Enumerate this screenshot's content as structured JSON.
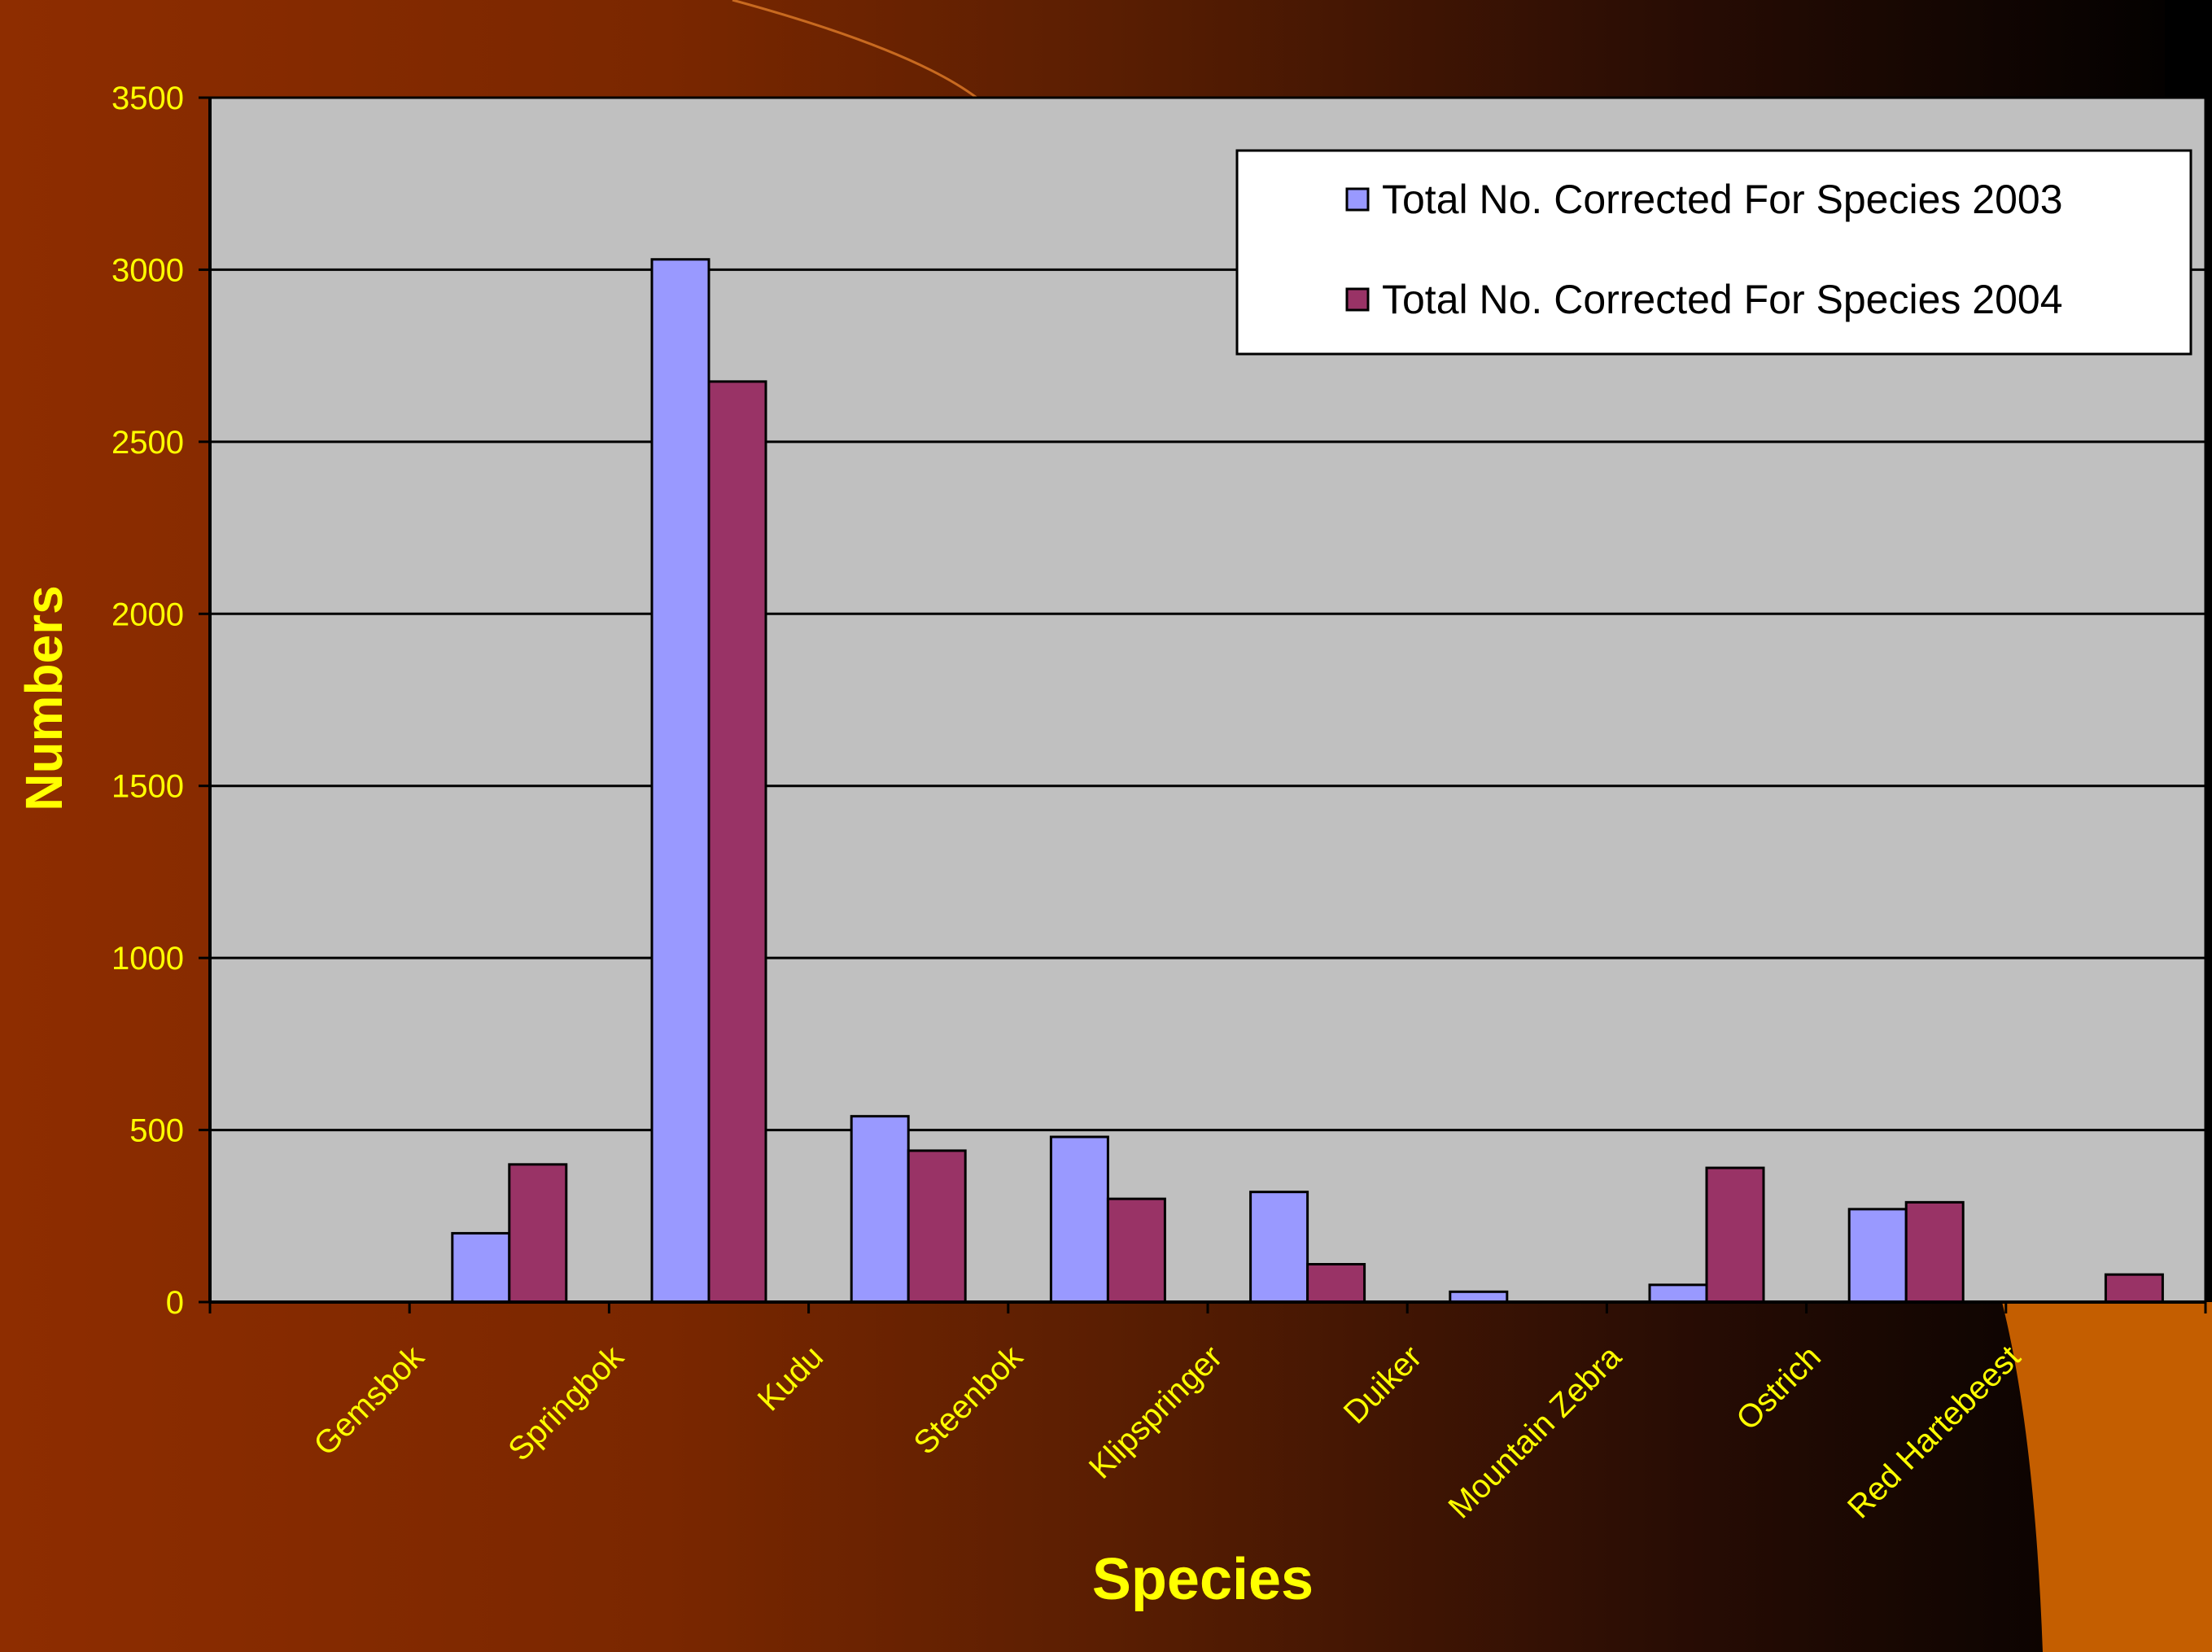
{
  "chart_data": {
    "type": "bar",
    "categories": [
      "Gemsbok",
      "Springbok",
      "Kudu",
      "Steenbok",
      "Klipspringer",
      "Duiker",
      "Mountain Zebra",
      "Ostrich",
      "Red Hartebeest"
    ],
    "series": [
      {
        "name": "Total No. Corrected For Species 2003",
        "values": [
          200,
          3030,
          540,
          480,
          320,
          30,
          50,
          270,
          0
        ],
        "color": "#9999ff"
      },
      {
        "name": "Total No. Corrected For Species 2004",
        "values": [
          400,
          2675,
          440,
          300,
          110,
          0,
          390,
          290,
          80
        ],
        "color": "#993366"
      }
    ],
    "xlabel": "Species",
    "ylabel": "Numbers",
    "ylim": [
      0,
      3500
    ],
    "yticks": [
      0,
      500,
      1000,
      1500,
      2000,
      2500,
      3000,
      3500
    ],
    "grid": true,
    "legend_position": "top-right",
    "colors": {
      "plot_bg": "#c0c0c0",
      "label_text": "#ffff00",
      "legend_bg": "#ffffff"
    }
  }
}
